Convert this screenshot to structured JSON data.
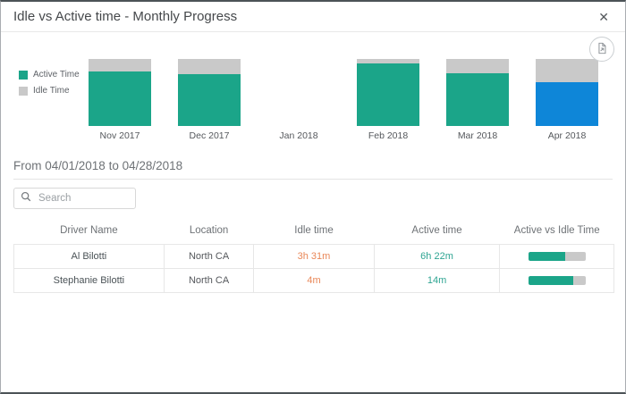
{
  "dialog": {
    "title": "Idle vs Active time - Monthly Progress",
    "close_glyph": "✕"
  },
  "toolbar": {
    "export_icon": "export-report-icon"
  },
  "icons": {
    "close": "x-mark",
    "search": "magnifier",
    "export": "document-with-arrow"
  },
  "colors": {
    "active_teal": "#1ba589",
    "idle_gray": "#c9c9c9",
    "selected_blue": "#0e86d8",
    "idle_text_orange": "#e98758",
    "active_text_teal": "#2ea492"
  },
  "chart_data": {
    "type": "bar",
    "stacked": true,
    "unit": "percent of month total (read from pixels)",
    "categories": [
      "Nov 2017",
      "Dec 2017",
      "Jan 2018",
      "Feb 2018",
      "Mar 2018",
      "Apr 2018"
    ],
    "series": [
      {
        "name": "Active Time",
        "values_pct": [
          82,
          78,
          0,
          93,
          79,
          65
        ]
      },
      {
        "name": "Idle Time",
        "values_pct": [
          18,
          22,
          0,
          7,
          21,
          35
        ]
      }
    ],
    "selected_category": "Apr 2018",
    "legend_position": "left",
    "ylim": [
      0,
      100
    ],
    "grid": false
  },
  "period": {
    "label": "From 04/01/2018 to 04/28/2018"
  },
  "search": {
    "placeholder": "Search"
  },
  "table": {
    "columns": [
      "Driver Name",
      "Location",
      "Idle time",
      "Active time",
      "Active vs Idle Time"
    ],
    "col_widths_pct": [
      25,
      15,
      20,
      21,
      19
    ],
    "rows": [
      {
        "driver": "Al Bilotti",
        "location": "North CA",
        "idle": "3h 31m",
        "active": "6h 22m",
        "active_pct": 64
      },
      {
        "driver": "Stephanie Bilotti",
        "location": "North CA",
        "idle": "4m",
        "active": "14m",
        "active_pct": 78
      }
    ]
  }
}
